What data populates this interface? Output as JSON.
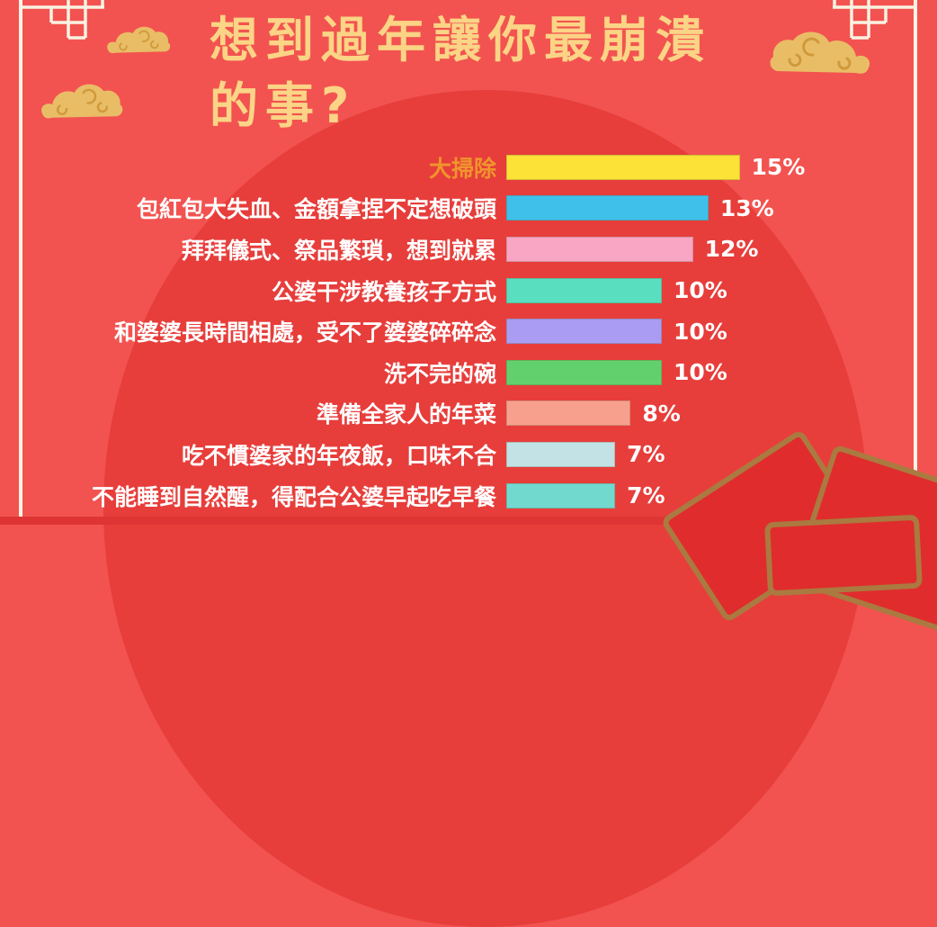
{
  "title": {
    "line1": "想到過年讓你最崩潰",
    "line2": "的事?"
  },
  "colors": {
    "background": "#f25350",
    "background_ellipse": "#e73e3b",
    "title_text": "#fbd486",
    "label_text": "#ffffff",
    "highlight_label_text": "#f0952c",
    "frame_line": "#f9f3e3",
    "cloud_fill": "#e9bd66",
    "cloud_swirl": "#cf9a3c",
    "envelope_fill": "#e02c2c",
    "envelope_border": "#aa7a40"
  },
  "chart_data": {
    "type": "bar",
    "orientation": "horizontal",
    "title": "想到過年讓你最崩潰的事?",
    "unit": "%",
    "xlim": [
      0,
      15
    ],
    "grid": false,
    "legend": false,
    "categories": [
      "大掃除",
      "包紅包大失血、金額拿捏不定想破頭",
      "拜拜儀式、祭品繁瑣，想到就累",
      "公婆干涉教養孩子方式",
      "和婆婆長時間相處，受不了婆婆碎碎念",
      "洗不完的碗",
      "準備全家人的年菜",
      "吃不慣婆家的年夜飯，口味不合",
      "不能睡到自然醒，得配合公婆早起吃早餐"
    ],
    "values": [
      15,
      13,
      12,
      10,
      10,
      10,
      8,
      7,
      7
    ],
    "value_labels": [
      "15%",
      "13%",
      "12%",
      "10%",
      "10%",
      "10%",
      "8%",
      "7%",
      "7%"
    ],
    "bar_colors": [
      "#fce137",
      "#3fc0ea",
      "#f9a6c4",
      "#59dfbf",
      "#a99cf2",
      "#63d06e",
      "#f8a08e",
      "#c3e2e6",
      "#72d9cf"
    ],
    "label_colors": [
      "#f0952c",
      "#ffffff",
      "#ffffff",
      "#ffffff",
      "#ffffff",
      "#ffffff",
      "#ffffff",
      "#ffffff",
      "#ffffff"
    ]
  },
  "decorations": {
    "clouds": [
      "gold-cloud",
      "gold-cloud",
      "gold-cloud"
    ],
    "envelopes": [
      "red-envelope",
      "red-envelope",
      "red-envelope"
    ],
    "corner_ornaments": [
      "fret-corner-top-left",
      "fret-corner-top-right"
    ]
  }
}
